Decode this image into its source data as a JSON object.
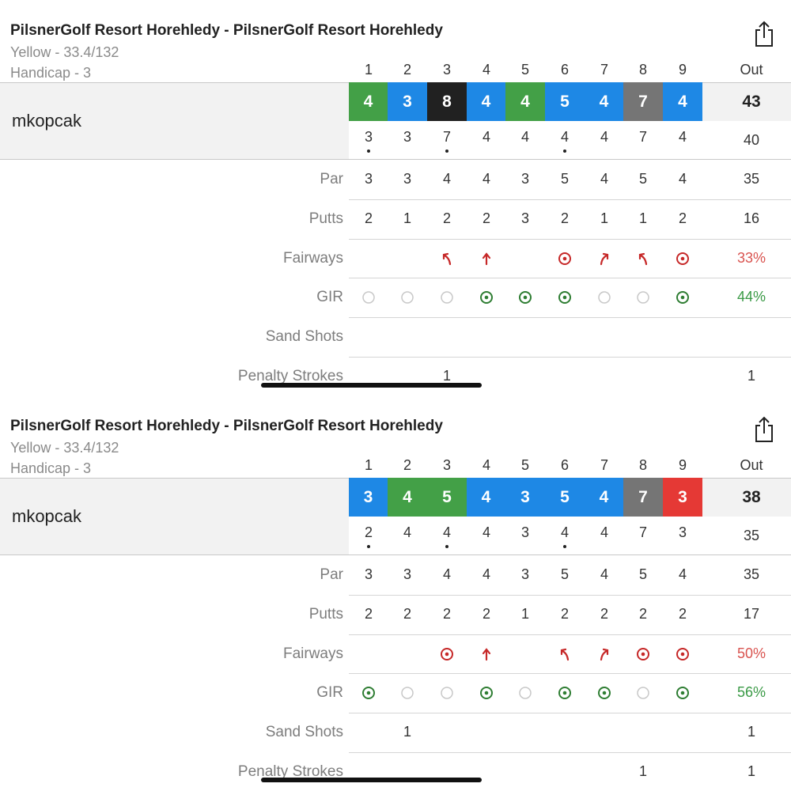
{
  "colors": {
    "birdie": "#1e88e5",
    "par": "#43a047",
    "bogey_plus": "#212121",
    "double": "#757575",
    "eagle_red": "#e53935",
    "fairway_red": "#c62828",
    "gir_green": "#2e7d32",
    "gir_empty": "#c8c8c8"
  },
  "cards": [
    {
      "title": "PilsnerGolf Resort Horehledy - PilsnerGolf Resort Horehledy",
      "tee": "Yellow - 33.4/132",
      "handicap": "Handicap - 3",
      "holes": [
        "1",
        "2",
        "3",
        "4",
        "5",
        "6",
        "7",
        "8",
        "9"
      ],
      "out_label": "Out",
      "player": "mkopcak",
      "scores": [
        {
          "v": "4",
          "color": "#43a047"
        },
        {
          "v": "3",
          "color": "#1e88e5"
        },
        {
          "v": "8",
          "color": "#212121"
        },
        {
          "v": "4",
          "color": "#1e88e5"
        },
        {
          "v": "4",
          "color": "#43a047"
        },
        {
          "v": "5",
          "color": "#1e88e5"
        },
        {
          "v": "4",
          "color": "#1e88e5"
        },
        {
          "v": "7",
          "color": "#757575"
        },
        {
          "v": "4",
          "color": "#1e88e5"
        }
      ],
      "score_out": "43",
      "net": [
        "3",
        "3",
        "7",
        "4",
        "4",
        "4",
        "4",
        "7",
        "4"
      ],
      "net_dots": [
        true,
        false,
        true,
        false,
        false,
        true,
        false,
        false,
        false
      ],
      "net_out": "40",
      "par_label": "Par",
      "par": [
        "3",
        "3",
        "4",
        "4",
        "3",
        "5",
        "4",
        "5",
        "4"
      ],
      "par_out": "35",
      "putts_label": "Putts",
      "putts": [
        "2",
        "1",
        "2",
        "2",
        "3",
        "2",
        "1",
        "1",
        "2"
      ],
      "putts_out": "16",
      "fairways_label": "Fairways",
      "fairways": [
        "none",
        "none",
        "left",
        "straight",
        "none",
        "target",
        "right",
        "left",
        "target"
      ],
      "fairways_out": "33%",
      "gir_label": "GIR",
      "gir": [
        false,
        false,
        false,
        true,
        true,
        true,
        false,
        false,
        true
      ],
      "gir_out": "44%",
      "sand_label": "Sand Shots",
      "sand": [
        "",
        "",
        "",
        "",
        "",
        "",
        "",
        "",
        ""
      ],
      "sand_out": "",
      "penalty_label": "Penalty Strokes",
      "penalty": [
        "",
        "",
        "1",
        "",
        "",
        "",
        "",
        "",
        ""
      ],
      "penalty_out": "1"
    },
    {
      "title": "PilsnerGolf Resort Horehledy - PilsnerGolf Resort Horehledy",
      "tee": "Yellow - 33.4/132",
      "handicap": "Handicap - 3",
      "holes": [
        "1",
        "2",
        "3",
        "4",
        "5",
        "6",
        "7",
        "8",
        "9"
      ],
      "out_label": "Out",
      "player": "mkopcak",
      "scores": [
        {
          "v": "3",
          "color": "#1e88e5"
        },
        {
          "v": "4",
          "color": "#43a047"
        },
        {
          "v": "5",
          "color": "#43a047"
        },
        {
          "v": "4",
          "color": "#1e88e5"
        },
        {
          "v": "3",
          "color": "#1e88e5"
        },
        {
          "v": "5",
          "color": "#1e88e5"
        },
        {
          "v": "4",
          "color": "#1e88e5"
        },
        {
          "v": "7",
          "color": "#757575"
        },
        {
          "v": "3",
          "color": "#e53935"
        }
      ],
      "score_out": "38",
      "net": [
        "2",
        "4",
        "4",
        "4",
        "3",
        "4",
        "4",
        "7",
        "3"
      ],
      "net_dots": [
        true,
        false,
        true,
        false,
        false,
        true,
        false,
        false,
        false
      ],
      "net_out": "35",
      "par_label": "Par",
      "par": [
        "3",
        "3",
        "4",
        "4",
        "3",
        "5",
        "4",
        "5",
        "4"
      ],
      "par_out": "35",
      "putts_label": "Putts",
      "putts": [
        "2",
        "2",
        "2",
        "2",
        "1",
        "2",
        "2",
        "2",
        "2"
      ],
      "putts_out": "17",
      "fairways_label": "Fairways",
      "fairways": [
        "none",
        "none",
        "target",
        "straight",
        "none",
        "left",
        "right",
        "target",
        "target"
      ],
      "fairways_out": "50%",
      "gir_label": "GIR",
      "gir": [
        true,
        false,
        false,
        true,
        false,
        true,
        true,
        false,
        true
      ],
      "gir_out": "56%",
      "sand_label": "Sand Shots",
      "sand": [
        "",
        "1",
        "",
        "",
        "",
        "",
        "",
        "",
        ""
      ],
      "sand_out": "1",
      "penalty_label": "Penalty Strokes",
      "penalty": [
        "",
        "",
        "",
        "",
        "",
        "",
        "",
        "1",
        ""
      ],
      "penalty_out": "1"
    }
  ]
}
